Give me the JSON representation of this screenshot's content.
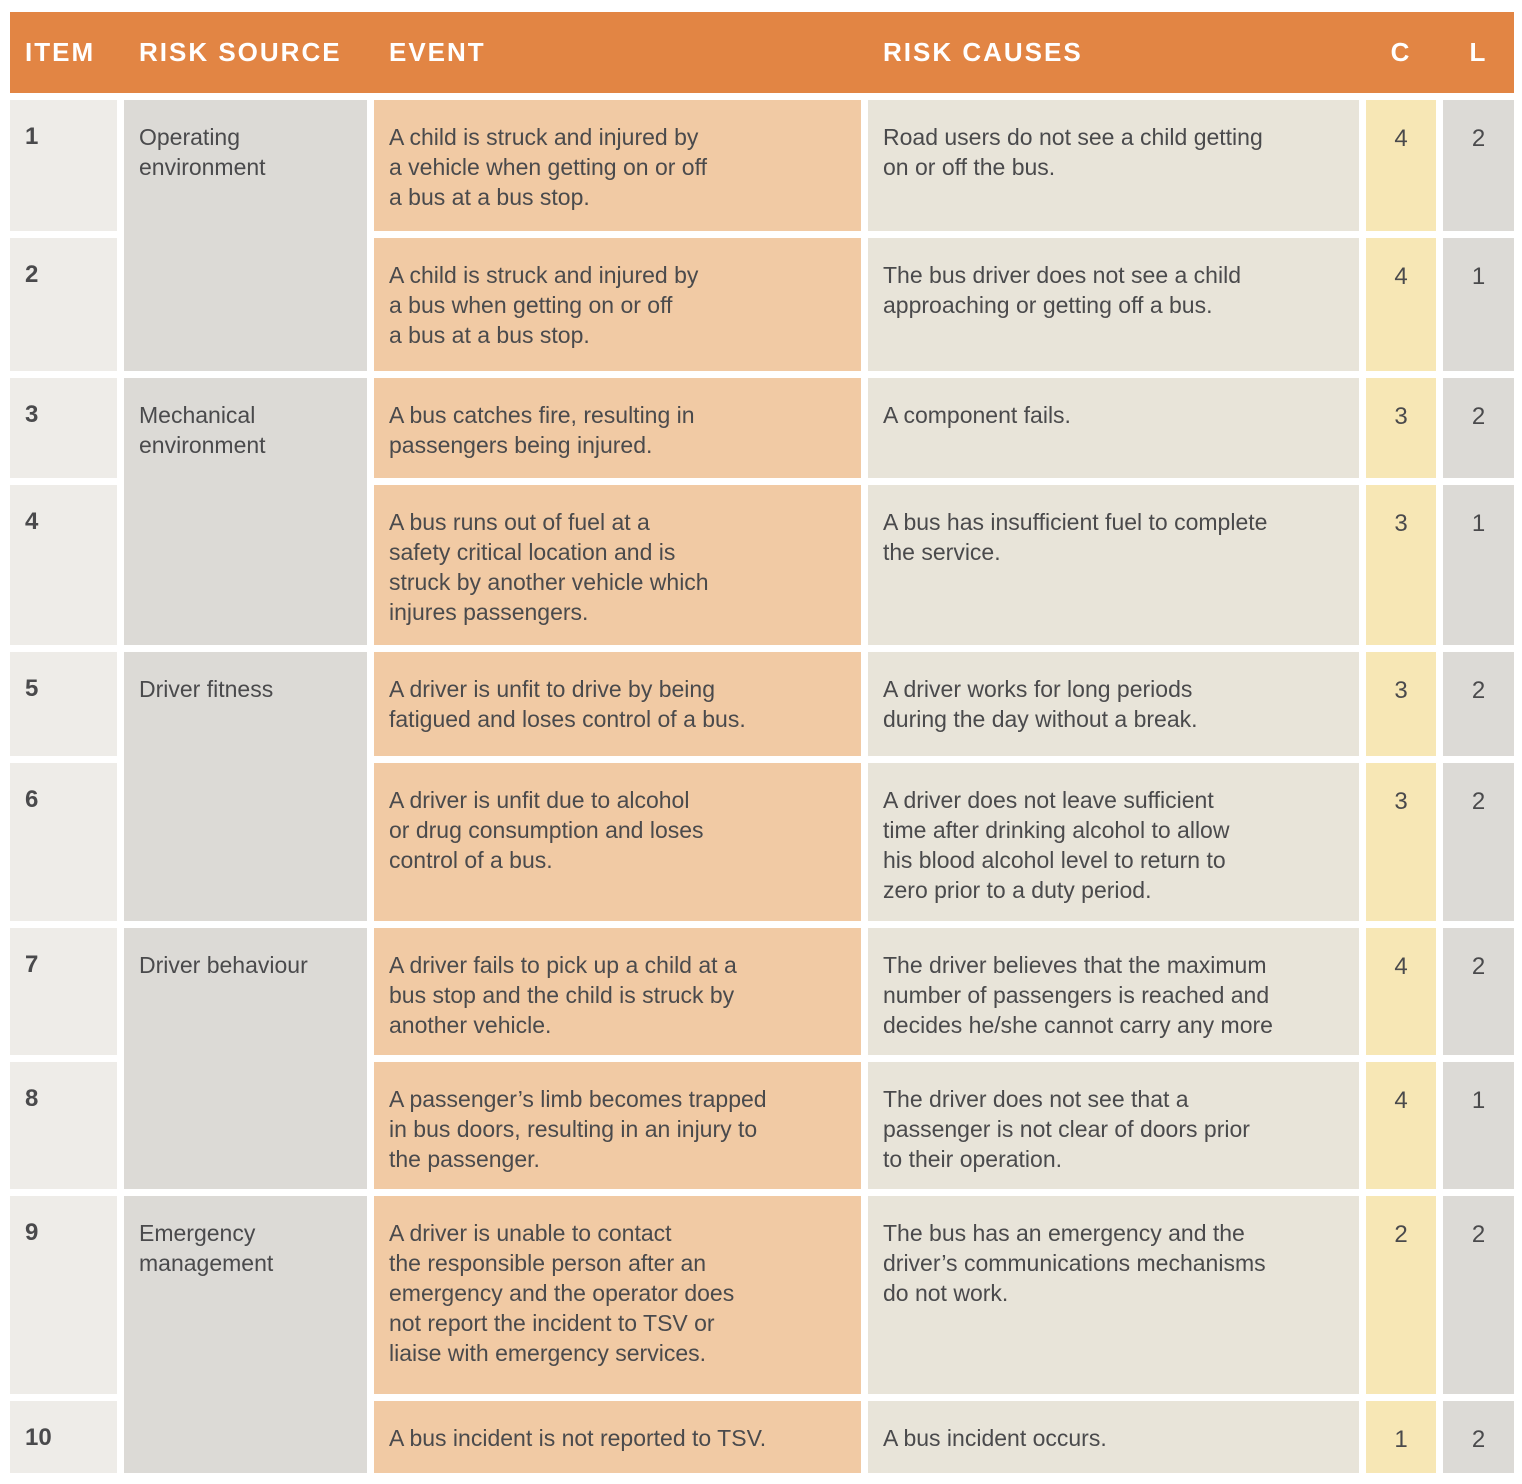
{
  "colors": {
    "header_bg": "#E28544",
    "header_text": "#FFFFFF",
    "item_bg": "#EEECE8",
    "risk_source_bg": "#DCDAD6",
    "event_bg": "#F1CAA4",
    "risk_causes_bg": "#E8E4D9",
    "c_bg": "#F7E7B5",
    "l_bg": "#DCDAD6",
    "body_text": "#4A4A4C",
    "page_bg": "#FFFFFF"
  },
  "header": {
    "item": "ITEM",
    "risk_source": "RISK SOURCE",
    "event": "EVENT",
    "risk_causes": "RISK CAUSES",
    "c": "C",
    "l": "L"
  },
  "risk_sources": [
    {
      "label": "Operating\nenvironment"
    },
    {
      "label": "Mechanical\nenvironment"
    },
    {
      "label": "Driver fitness"
    },
    {
      "label": "Driver behaviour"
    },
    {
      "label": "Emergency\nmanagement"
    }
  ],
  "rows": [
    {
      "item": "1",
      "event": "A child is struck and injured by\na vehicle when getting on or off\na bus at a bus stop.",
      "cause": "Road users do not see a child getting\non or off the bus.",
      "c": "4",
      "l": "2"
    },
    {
      "item": "2",
      "event": "A child is struck and injured by\na bus when getting on or off\na bus at a bus stop.",
      "cause": "The bus driver does not see a child\napproaching or getting off a bus.",
      "c": "4",
      "l": "1"
    },
    {
      "item": "3",
      "event": "A bus catches fire, resulting in\npassengers being injured.",
      "cause": "A component fails.",
      "c": "3",
      "l": "2"
    },
    {
      "item": "4",
      "event": "A bus runs out of fuel at a\nsafety critical location and is\nstruck by another vehicle which\ninjures passengers.",
      "cause": "A bus has insufficient fuel to complete\nthe service.",
      "c": "3",
      "l": "1"
    },
    {
      "item": "5",
      "event": "A driver is unfit to drive by being\nfatigued and loses control of a bus.",
      "cause": "A driver works for long periods\nduring the day without a break.",
      "c": "3",
      "l": "2"
    },
    {
      "item": "6",
      "event": "A driver is unfit due to alcohol\nor drug consumption and loses\ncontrol of a bus.",
      "cause": "A driver does not leave sufficient\ntime after drinking alcohol to allow\nhis blood alcohol level to return to\nzero prior to a duty period.",
      "c": "3",
      "l": "2"
    },
    {
      "item": "7",
      "event": "A driver fails to pick up a child at a\nbus stop and the child is struck by\nanother vehicle.",
      "cause": "The driver believes that the maximum\nnumber of passengers is reached and\ndecides he/she cannot carry any more",
      "c": "4",
      "l": "2"
    },
    {
      "item": "8",
      "event": "A passenger’s limb becomes trapped\nin bus doors, resulting in an injury to\nthe passenger.",
      "cause": "The driver does not see that a\npassenger is not clear of doors prior\nto their operation.",
      "c": "4",
      "l": "1"
    },
    {
      "item": "9",
      "event": "A driver is unable to contact\nthe responsible person after an\nemergency and the operator does\nnot report the incident to TSV or\nliaise with emergency services.",
      "cause": "The bus has an emergency and the\ndriver’s communications mechanisms\ndo not work.",
      "c": "2",
      "l": "2"
    },
    {
      "item": "10",
      "event": "A bus incident is not reported to TSV.",
      "cause": "A bus incident occurs.",
      "c": "1",
      "l": "2"
    }
  ]
}
